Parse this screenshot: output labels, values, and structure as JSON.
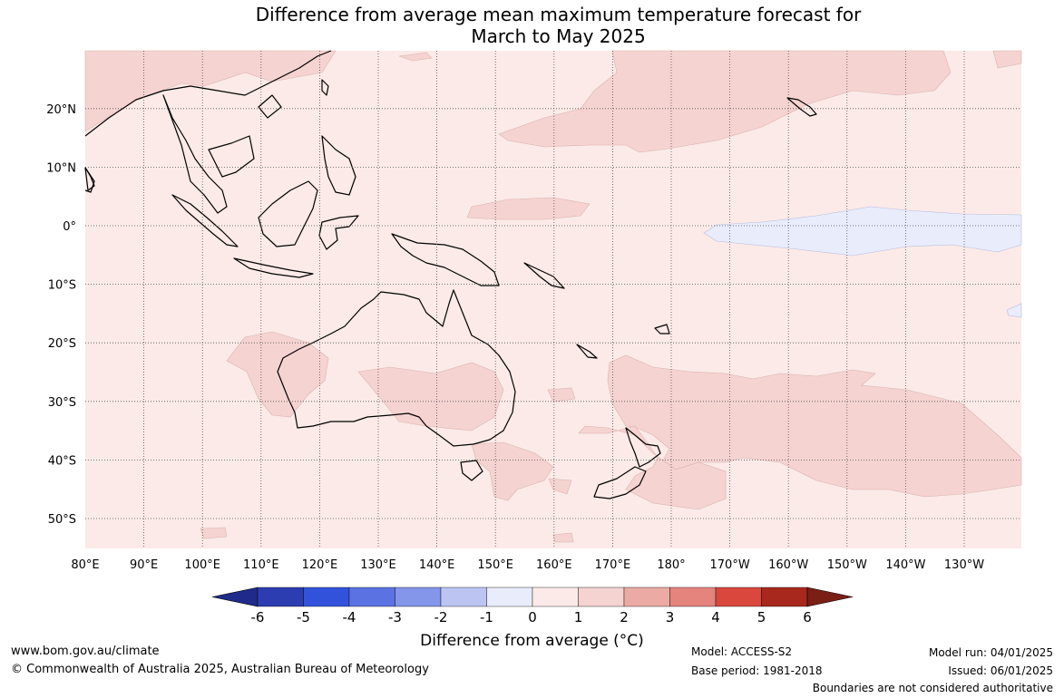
{
  "title": {
    "line1": "Difference from average mean maximum temperature forecast for",
    "line2": "March to May 2025"
  },
  "map": {
    "lon_labels": [
      "80°E",
      "90°E",
      "100°E",
      "110°E",
      "120°E",
      "130°E",
      "140°E",
      "150°E",
      "160°E",
      "170°E",
      "180°",
      "170°W",
      "160°W",
      "150°W",
      "140°W",
      "130°W"
    ],
    "lat_labels": [
      "20°N",
      "10°N",
      "0°",
      "10°S",
      "20°S",
      "30°S",
      "40°S",
      "50°S"
    ],
    "background_color": "#fbeae7",
    "land_outline_color": "#000000"
  },
  "colorbar": {
    "ticks": [
      "-6",
      "-5",
      "-4",
      "-3",
      "-2",
      "-1",
      "0",
      "1",
      "2",
      "3",
      "4",
      "5",
      "6"
    ],
    "colors": [
      "#1f2a8a",
      "#2b3db0",
      "#3352db",
      "#5b72e3",
      "#8396ea",
      "#bcc5f2",
      "#e8ecfb",
      "#fbeae7",
      "#f5d3d1",
      "#ebaaa4",
      "#e5837d",
      "#d9473d",
      "#a8281e",
      "#7a1f16"
    ],
    "title": "Difference from average (°C)"
  },
  "footer": {
    "website": "www.bom.gov.au/climate",
    "copyright": "© Commonwealth of Australia 2025, Australian Bureau of Meteorology",
    "model": "Model: ACCESS-S2",
    "base_period": "Base period: 1981-2018",
    "model_run": "Model run: 04/01/2025",
    "issued": "Issued: 06/01/2025",
    "disclaimer": "Boundaries are not considered authoritative"
  }
}
